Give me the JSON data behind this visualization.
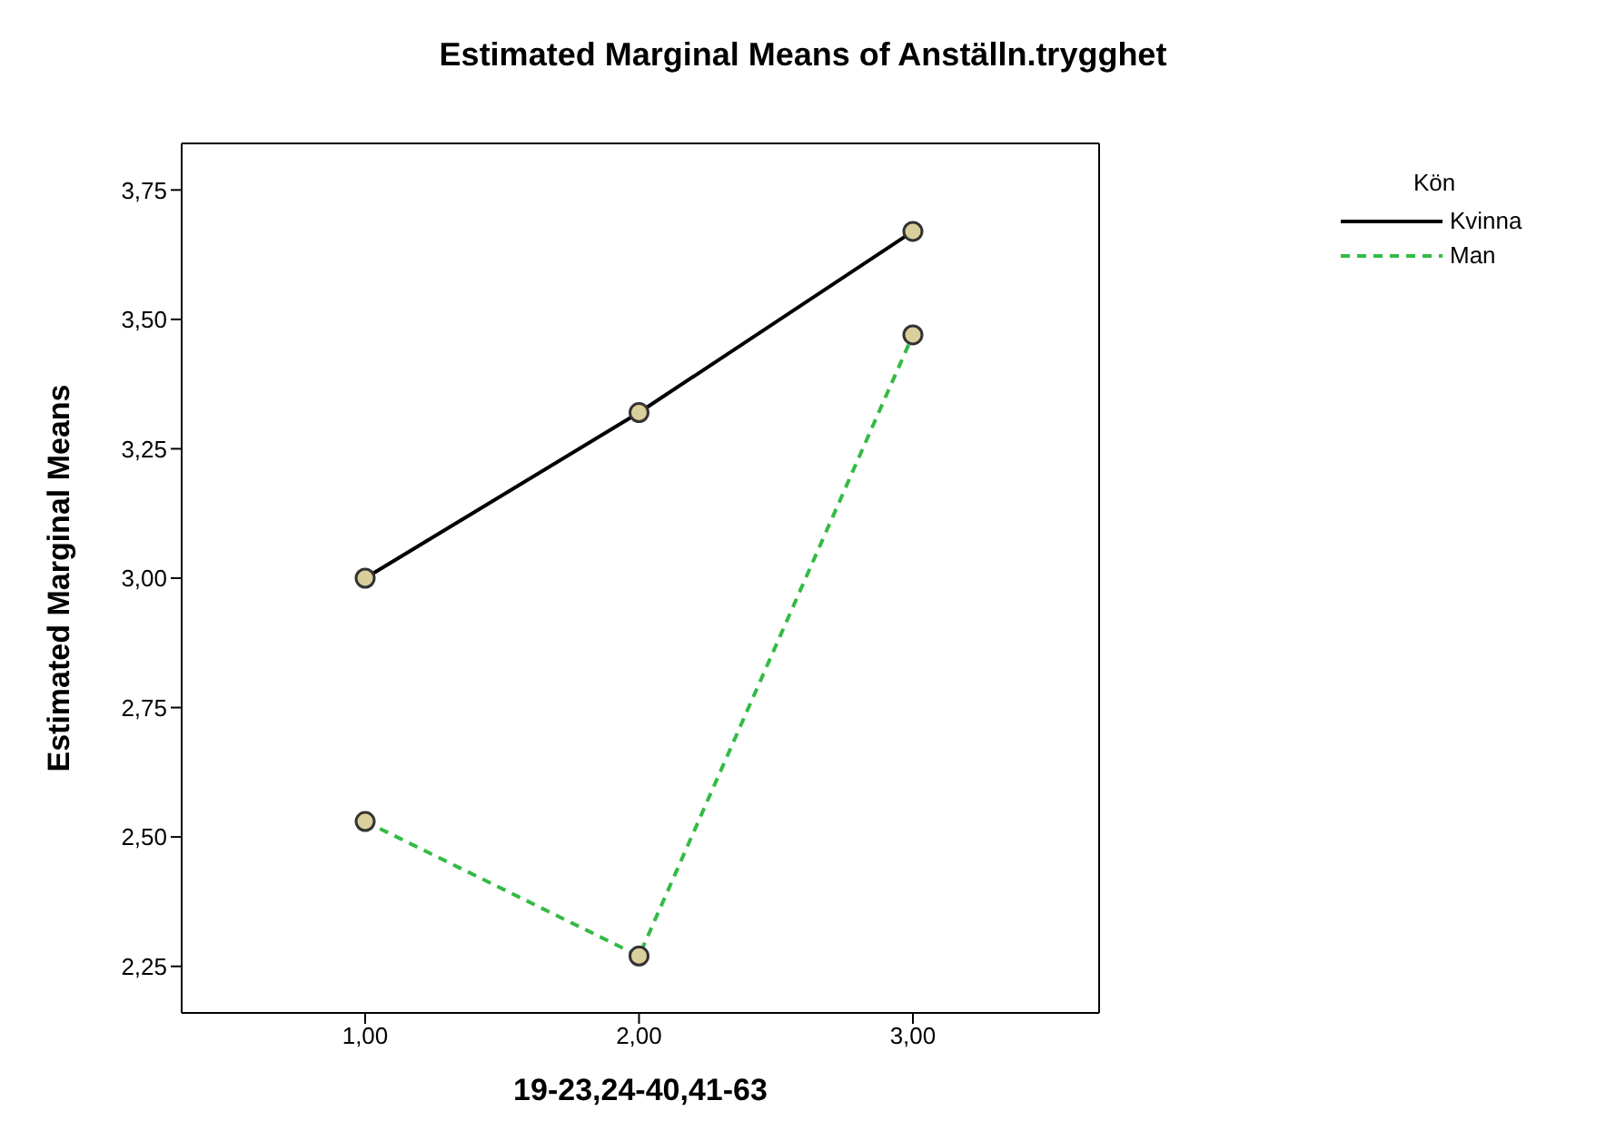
{
  "chart_data": {
    "type": "line",
    "title": "Estimated Marginal Means of Anställn.trygghet",
    "xlabel": "19-23,24-40,41-63",
    "ylabel": "Estimated Marginal Means",
    "legend_title": "Kön",
    "categories": [
      "1,00",
      "2,00",
      "3,00"
    ],
    "series": [
      {
        "name": "Kvinna",
        "color": "#000000",
        "line_style": "solid",
        "values": [
          3.0,
          3.32,
          3.67
        ]
      },
      {
        "name": "Man",
        "color": "#33bb44",
        "line_style": "dashed",
        "values": [
          2.53,
          2.27,
          3.47
        ]
      }
    ],
    "ylim": [
      2.16,
      3.84
    ],
    "yticks": [
      {
        "value": 2.25,
        "label": "2,25"
      },
      {
        "value": 2.5,
        "label": "2,50"
      },
      {
        "value": 2.75,
        "label": "2,75"
      },
      {
        "value": 3,
        "label": "3,00"
      },
      {
        "value": 3.25,
        "label": "3,25"
      },
      {
        "value": 3.5,
        "label": "3,50"
      },
      {
        "value": 3.75,
        "label": "3,75"
      }
    ],
    "marker": "circle",
    "legend": "top right",
    "grid": false
  }
}
